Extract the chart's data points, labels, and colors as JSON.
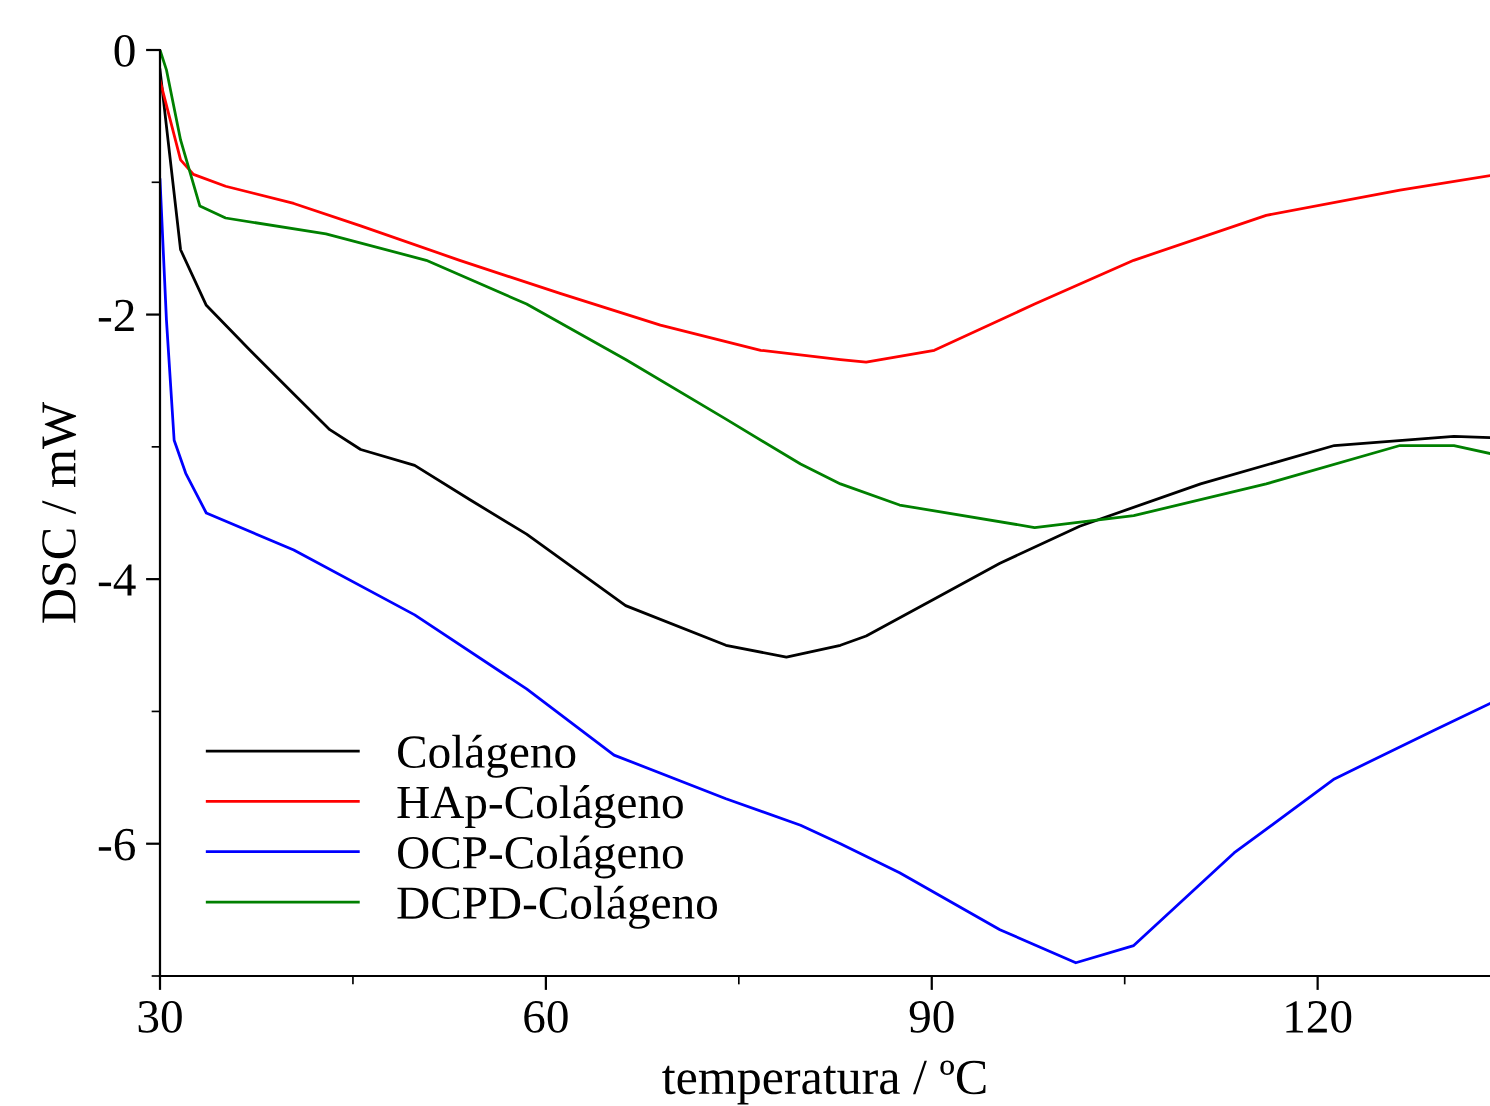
{
  "chart_data": {
    "type": "line",
    "xlabel": "temperatura / ºC",
    "ylabel": "DSC / mW",
    "xlim": [
      30,
      133.4
    ],
    "ylim": [
      -7,
      0
    ],
    "xticks": [
      30,
      60,
      90,
      120
    ],
    "yticks": [
      0,
      {
        "value": -2,
        "label": "-2"
      },
      {
        "value": -4,
        "label": "-4"
      },
      {
        "value": -6,
        "label": "-6"
      }
    ],
    "grid": false,
    "legend": "bottom left",
    "marker": "none",
    "line_style": "solid",
    "series": [
      {
        "name": "Colágeno",
        "color": "#000000",
        "x": [
          30,
          30.8,
          31.6,
          33.6,
          37.0,
          40.4,
          43.2,
          45.6,
          49.8,
          54.1,
          58.5,
          66.2,
          74.0,
          78.7,
          82.9,
          84.9,
          90.2,
          95.3,
          101.5,
          110.9,
          121.3,
          130.6,
          133.4
        ],
        "values": [
          -0.15,
          -0.83,
          -1.51,
          -1.93,
          -2.27,
          -2.6,
          -2.87,
          -3.02,
          -3.14,
          -3.4,
          -3.66,
          -4.2,
          -4.5,
          -4.59,
          -4.5,
          -4.43,
          -4.15,
          -3.88,
          -3.6,
          -3.28,
          -2.99,
          -2.92,
          -2.93
        ]
      },
      {
        "name": "HAp-Colágeno",
        "color": "#ff0000",
        "x": [
          30,
          30.8,
          31.6,
          32.6,
          35.1,
          40.4,
          45.6,
          53.3,
          61.1,
          68.9,
          76.7,
          82.9,
          84.9,
          90.2,
          98.0,
          105.7,
          116.0,
          126.4,
          133.4
        ],
        "values": [
          -0.23,
          -0.53,
          -0.83,
          -0.94,
          -1.03,
          -1.16,
          -1.33,
          -1.59,
          -1.84,
          -2.08,
          -2.27,
          -2.34,
          -2.36,
          -2.27,
          -1.92,
          -1.59,
          -1.25,
          -1.06,
          -0.95
        ]
      },
      {
        "name": "OCP-Colágeno",
        "color": "#0000ff",
        "x": [
          30,
          30.5,
          31.1,
          32.0,
          33.6,
          40.4,
          49.8,
          58.5,
          65.3,
          74.0,
          79.8,
          82.9,
          87.5,
          95.3,
          101.2,
          105.7,
          113.5,
          121.3,
          129.1,
          133.4
        ],
        "values": [
          -0.98,
          -2.04,
          -2.95,
          -3.2,
          -3.5,
          -3.78,
          -4.27,
          -4.83,
          -5.33,
          -5.66,
          -5.86,
          -6.0,
          -6.22,
          -6.65,
          -6.9,
          -6.77,
          -6.07,
          -5.51,
          -5.14,
          -4.94
        ]
      },
      {
        "name": "DCPD-Colágeno",
        "color": "#008000",
        "x": [
          30,
          30.5,
          31.6,
          33.1,
          35.1,
          42.9,
          50.7,
          58.5,
          66.2,
          74.0,
          79.8,
          82.9,
          87.5,
          98.0,
          105.7,
          116.0,
          126.4,
          130.6,
          133.4
        ],
        "values": [
          0.0,
          -0.15,
          -0.68,
          -1.18,
          -1.27,
          -1.39,
          -1.59,
          -1.92,
          -2.34,
          -2.79,
          -3.13,
          -3.28,
          -3.44,
          -3.61,
          -3.52,
          -3.28,
          -2.99,
          -2.99,
          -3.05
        ]
      }
    ]
  }
}
